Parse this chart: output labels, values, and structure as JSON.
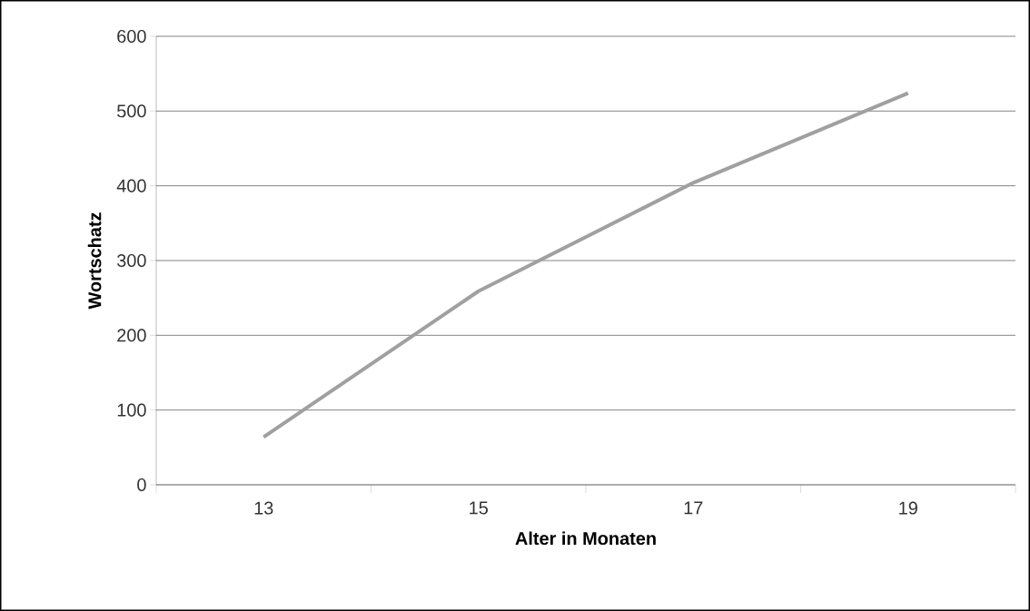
{
  "chart_data": {
    "type": "line",
    "xlabel": "Alter in Monaten",
    "ylabel": "Wortschatz",
    "categories": [
      "13",
      "15",
      "17",
      "19"
    ],
    "values": [
      64,
      259,
      404,
      524
    ],
    "color": "#a0a0a0",
    "ylim": [
      0,
      600
    ],
    "yticks": [
      0,
      100,
      200,
      300,
      400,
      500,
      600
    ],
    "grid": "y"
  }
}
